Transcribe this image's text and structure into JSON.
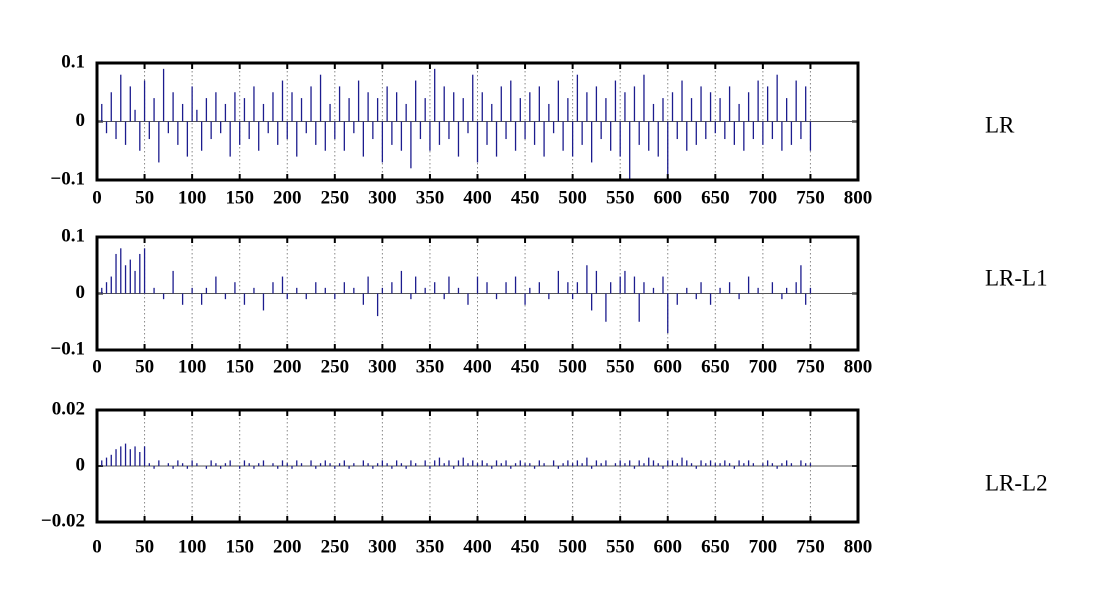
{
  "chart_data": [
    {
      "type": "stem",
      "grid": true,
      "xlim": [
        0,
        800
      ],
      "xticks": [
        0,
        50,
        100,
        150,
        200,
        250,
        300,
        350,
        400,
        450,
        500,
        550,
        600,
        650,
        700,
        750,
        800
      ],
      "ylim": [
        -0.1,
        0.1
      ],
      "yticks": [
        {
          "value": -0.1,
          "label": "−0.1"
        },
        0,
        0.1
      ],
      "x": [
        5,
        10,
        15,
        20,
        25,
        30,
        35,
        40,
        45,
        50,
        55,
        60,
        65,
        70,
        75,
        80,
        85,
        90,
        95,
        100,
        105,
        110,
        115,
        120,
        125,
        130,
        135,
        140,
        145,
        150,
        155,
        160,
        165,
        170,
        175,
        180,
        185,
        190,
        195,
        200,
        205,
        210,
        215,
        220,
        225,
        230,
        235,
        240,
        245,
        250,
        255,
        260,
        265,
        270,
        275,
        280,
        285,
        290,
        295,
        300,
        305,
        310,
        315,
        320,
        325,
        330,
        335,
        340,
        345,
        350,
        355,
        360,
        365,
        370,
        375,
        380,
        385,
        390,
        395,
        400,
        405,
        410,
        415,
        420,
        425,
        430,
        435,
        440,
        445,
        450,
        455,
        460,
        465,
        470,
        475,
        480,
        485,
        490,
        495,
        500,
        505,
        510,
        515,
        520,
        525,
        530,
        535,
        540,
        545,
        550,
        555,
        560,
        565,
        570,
        575,
        580,
        585,
        590,
        595,
        600,
        605,
        610,
        615,
        620,
        625,
        630,
        635,
        640,
        645,
        650,
        655,
        660,
        665,
        670,
        675,
        680,
        685,
        690,
        695,
        700,
        705,
        710,
        715,
        720,
        725,
        730,
        735,
        740,
        745,
        750
      ],
      "series": [
        {
          "name": "LR",
          "color": "#1c1c8e",
          "values": [
            0.03,
            -0.02,
            0.05,
            -0.03,
            0.08,
            -0.04,
            0.06,
            0.02,
            -0.05,
            0.07,
            -0.03,
            0.04,
            -0.07,
            0.09,
            -0.02,
            0.05,
            -0.04,
            0.03,
            -0.06,
            0.06,
            0.02,
            -0.05,
            0.04,
            -0.03,
            0.05,
            -0.02,
            0.03,
            -0.06,
            0.05,
            -0.04,
            0.04,
            -0.03,
            0.06,
            -0.05,
            0.03,
            -0.02,
            0.05,
            -0.04,
            0.07,
            -0.03,
            0.05,
            -0.06,
            0.04,
            -0.02,
            0.06,
            -0.04,
            0.08,
            -0.05,
            0.03,
            -0.03,
            0.06,
            -0.05,
            0.04,
            -0.02,
            0.07,
            -0.06,
            0.05,
            -0.03,
            0.04,
            -0.07,
            0.06,
            -0.04,
            0.05,
            -0.05,
            0.03,
            -0.08,
            0.07,
            -0.03,
            0.04,
            -0.05,
            0.09,
            -0.04,
            0.06,
            -0.03,
            0.05,
            -0.06,
            0.04,
            -0.02,
            0.08,
            -0.07,
            0.05,
            -0.04,
            0.03,
            -0.06,
            0.06,
            -0.03,
            0.07,
            -0.05,
            0.04,
            -0.03,
            0.05,
            -0.04,
            0.06,
            -0.06,
            0.03,
            -0.02,
            0.07,
            -0.05,
            0.04,
            -0.06,
            0.08,
            -0.04,
            0.05,
            -0.07,
            0.06,
            -0.03,
            0.04,
            -0.05,
            0.07,
            -0.06,
            0.05,
            -0.1,
            0.06,
            -0.04,
            0.08,
            -0.05,
            0.03,
            -0.06,
            0.04,
            -0.09,
            0.05,
            -0.03,
            0.07,
            -0.05,
            0.04,
            -0.04,
            0.06,
            -0.03,
            0.05,
            -0.02,
            0.04,
            -0.03,
            0.06,
            -0.04,
            0.03,
            -0.05,
            0.05,
            -0.03,
            0.07,
            -0.04,
            0.06,
            -0.03,
            0.08,
            -0.05,
            0.04,
            -0.04,
            0.07,
            -0.03,
            0.06,
            -0.05
          ]
        }
      ]
    },
    {
      "type": "stem",
      "grid": true,
      "xlim": [
        0,
        800
      ],
      "xticks": [
        0,
        50,
        100,
        150,
        200,
        250,
        300,
        350,
        400,
        450,
        500,
        550,
        600,
        650,
        700,
        750,
        800
      ],
      "ylim": [
        -0.1,
        0.1
      ],
      "yticks": [
        {
          "value": -0.1,
          "label": "−0.1"
        },
        0,
        0.1
      ],
      "x": [
        5,
        10,
        15,
        20,
        25,
        30,
        35,
        40,
        45,
        50,
        55,
        60,
        65,
        70,
        75,
        80,
        85,
        90,
        95,
        100,
        105,
        110,
        115,
        120,
        125,
        130,
        135,
        140,
        145,
        150,
        155,
        160,
        165,
        170,
        175,
        180,
        185,
        190,
        195,
        200,
        205,
        210,
        215,
        220,
        225,
        230,
        235,
        240,
        245,
        250,
        255,
        260,
        265,
        270,
        275,
        280,
        285,
        290,
        295,
        300,
        305,
        310,
        315,
        320,
        325,
        330,
        335,
        340,
        345,
        350,
        355,
        360,
        365,
        370,
        375,
        380,
        385,
        390,
        395,
        400,
        405,
        410,
        415,
        420,
        425,
        430,
        435,
        440,
        445,
        450,
        455,
        460,
        465,
        470,
        475,
        480,
        485,
        490,
        495,
        500,
        505,
        510,
        515,
        520,
        525,
        530,
        535,
        540,
        545,
        550,
        555,
        560,
        565,
        570,
        575,
        580,
        585,
        590,
        595,
        600,
        605,
        610,
        615,
        620,
        625,
        630,
        635,
        640,
        645,
        650,
        655,
        660,
        665,
        670,
        675,
        680,
        685,
        690,
        695,
        700,
        705,
        710,
        715,
        720,
        725,
        730,
        735,
        740,
        745,
        750
      ],
      "series": [
        {
          "name": "LR-L1",
          "color": "#1c1c8e",
          "values": [
            0.01,
            0.02,
            0.03,
            0.07,
            0.08,
            0.05,
            0.06,
            0.04,
            0.07,
            0.08,
            0,
            0.01,
            0,
            -0.01,
            0,
            0.04,
            0,
            -0.02,
            0,
            0.01,
            0,
            -0.02,
            0.01,
            0,
            0.03,
            0,
            -0.01,
            0,
            0.02,
            0,
            -0.02,
            0,
            0.01,
            0,
            -0.03,
            0,
            0.02,
            0,
            0.03,
            -0.01,
            0,
            0.01,
            0,
            -0.01,
            0,
            0.02,
            0,
            0.01,
            0,
            -0.01,
            0,
            0.02,
            0,
            0.01,
            0,
            -0.02,
            0.03,
            0,
            -0.04,
            0.01,
            0,
            0.02,
            0,
            0.04,
            0,
            -0.01,
            0.03,
            0,
            0.01,
            0,
            0.02,
            0,
            -0.01,
            0.03,
            0,
            0.01,
            0,
            -0.02,
            0,
            0.03,
            0,
            0.02,
            0,
            -0.01,
            0,
            0.02,
            0,
            0.03,
            0,
            -0.02,
            0.01,
            0,
            0.02,
            0,
            -0.01,
            0,
            0.04,
            0,
            0.02,
            -0.01,
            0.02,
            0,
            0.05,
            -0.03,
            0.04,
            0,
            -0.05,
            0.02,
            0,
            0.03,
            0.04,
            0,
            0.03,
            -0.05,
            0.02,
            0,
            0.01,
            0,
            0.03,
            -0.07,
            0,
            -0.02,
            0,
            0.01,
            0,
            -0.01,
            0.02,
            0,
            -0.02,
            0,
            0.01,
            0,
            0.02,
            0,
            -0.01,
            0,
            0.03,
            0,
            0.01,
            0,
            0,
            0.02,
            0,
            -0.01,
            0.01,
            0,
            0.02,
            0.05,
            -0.02,
            0.01
          ]
        }
      ]
    },
    {
      "type": "stem",
      "grid": true,
      "xlim": [
        0,
        800
      ],
      "xticks": [
        0,
        50,
        100,
        150,
        200,
        250,
        300,
        350,
        400,
        450,
        500,
        550,
        600,
        650,
        700,
        750,
        800
      ],
      "ylim": [
        -0.02,
        0.02
      ],
      "yticks": [
        {
          "value": -0.02,
          "label": "−0.02"
        },
        0,
        0.02
      ],
      "x": [
        5,
        10,
        15,
        20,
        25,
        30,
        35,
        40,
        45,
        50,
        55,
        60,
        65,
        70,
        75,
        80,
        85,
        90,
        95,
        100,
        105,
        110,
        115,
        120,
        125,
        130,
        135,
        140,
        145,
        150,
        155,
        160,
        165,
        170,
        175,
        180,
        185,
        190,
        195,
        200,
        205,
        210,
        215,
        220,
        225,
        230,
        235,
        240,
        245,
        250,
        255,
        260,
        265,
        270,
        275,
        280,
        285,
        290,
        295,
        300,
        305,
        310,
        315,
        320,
        325,
        330,
        335,
        340,
        345,
        350,
        355,
        360,
        365,
        370,
        375,
        380,
        385,
        390,
        395,
        400,
        405,
        410,
        415,
        420,
        425,
        430,
        435,
        440,
        445,
        450,
        455,
        460,
        465,
        470,
        475,
        480,
        485,
        490,
        495,
        500,
        505,
        510,
        515,
        520,
        525,
        530,
        535,
        540,
        545,
        550,
        555,
        560,
        565,
        570,
        575,
        580,
        585,
        590,
        595,
        600,
        605,
        610,
        615,
        620,
        625,
        630,
        635,
        640,
        645,
        650,
        655,
        660,
        665,
        670,
        675,
        680,
        685,
        690,
        695,
        700,
        705,
        710,
        715,
        720,
        725,
        730,
        735,
        740,
        745,
        750
      ],
      "series": [
        {
          "name": "LR-L2",
          "color": "#1c1c8e",
          "values": [
            0.002,
            0.003,
            0.004,
            0.006,
            0.007,
            0.008,
            0.006,
            0.007,
            0.005,
            0.007,
            0.001,
            -0.001,
            0.002,
            0,
            0.001,
            -0.001,
            0.002,
            0.001,
            -0.001,
            0.002,
            0.001,
            0,
            -0.001,
            0.002,
            0.001,
            -0.001,
            0.001,
            0.002,
            0,
            -0.001,
            0.002,
            0.001,
            -0.001,
            0.001,
            0.002,
            0,
            0.001,
            -0.001,
            0.002,
            0.001,
            -0.001,
            0.002,
            0.001,
            0,
            0.002,
            -0.001,
            0.001,
            0.002,
            0.001,
            -0.001,
            0.001,
            0.002,
            -0.001,
            0.001,
            0,
            0.002,
            0.001,
            -0.001,
            0.001,
            0.002,
            0.001,
            -0.001,
            0.002,
            0.001,
            -0.001,
            0.002,
            0.001,
            0,
            0.002,
            -0.001,
            0.002,
            0.003,
            0.001,
            0.002,
            -0.001,
            0.002,
            0.003,
            0.001,
            0.002,
            0.001,
            0.002,
            0.001,
            -0.001,
            0.002,
            0.001,
            0.002,
            -0.001,
            0.001,
            0.002,
            0.001,
            0.001,
            -0.001,
            0.002,
            0.001,
            0,
            0.002,
            -0.001,
            0.001,
            0.002,
            0.001,
            0.002,
            0.001,
            0.003,
            -0.001,
            0.002,
            0.001,
            0.002,
            0,
            0.001,
            0.002,
            0.001,
            0.002,
            -0.001,
            0.002,
            0.001,
            0.003,
            0.002,
            0.001,
            -0.001,
            0.002,
            0.002,
            0.001,
            0.003,
            0.002,
            0.001,
            -0.001,
            0.002,
            0.001,
            0.002,
            0.001,
            0.001,
            0.002,
            0.001,
            -0.001,
            0.002,
            0.001,
            0.002,
            0.001,
            0,
            0.001,
            0.002,
            0.001,
            -0.001,
            0.001,
            0.002,
            0.001,
            0,
            0.002,
            0.001,
            0.001
          ]
        }
      ]
    }
  ]
}
